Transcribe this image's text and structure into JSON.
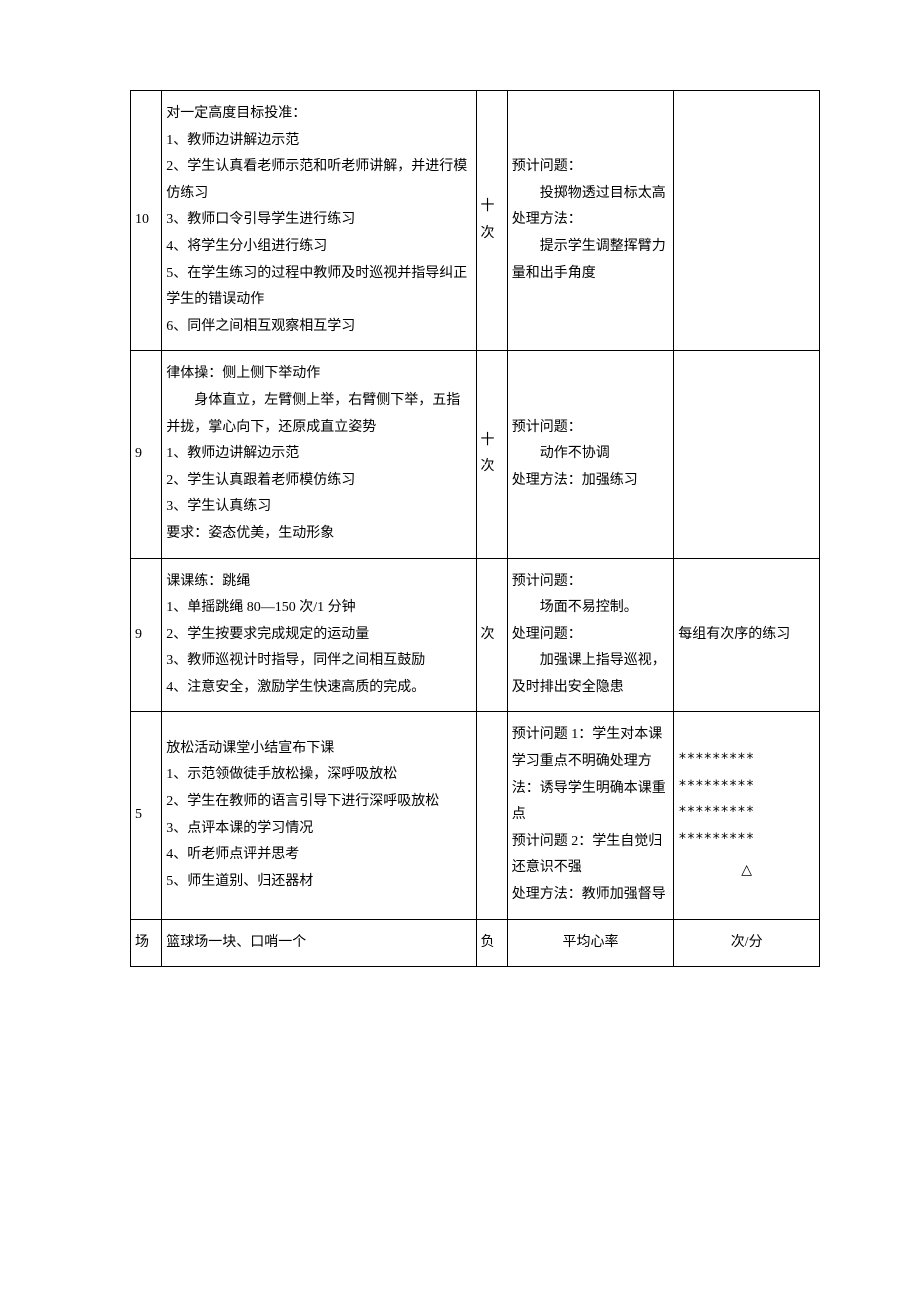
{
  "rows": [
    {
      "time": "10",
      "content": [
        "对一定高度目标投准：",
        "1、教师边讲解边示范",
        "2、学生认真看老师示范和听老师讲解，并进行模仿练习",
        "3、教师口令引导学生进行练习",
        "4、将学生分小组进行练习",
        "5、在学生练习的过程中教师及时巡视并指导纠正学生的错误动作",
        "6、同伴之间相互观察相互学习"
      ],
      "count": "十次",
      "issues": [
        "预计问题：",
        "　　投掷物透过目标太高",
        "处理方法：",
        "　　提示学生调整挥臂力量和出手角度"
      ],
      "notes": []
    },
    {
      "time": "9",
      "content": [
        "律体操：侧上侧下举动作",
        "　　身体直立，左臂侧上举，右臂侧下举，五指并拢，掌心向下，还原成直立姿势",
        "1、教师边讲解边示范",
        "2、学生认真跟着老师模仿练习",
        "3、学生认真练习",
        "要求：姿态优美，生动形象"
      ],
      "count": "十次",
      "issues": [
        "预计问题：",
        "　　动作不协调",
        "处理方法：加强练习"
      ],
      "notes": []
    },
    {
      "time": "9",
      "content": [
        "课课练：跳绳",
        "1、单摇跳绳 80—150 次/1 分钟",
        "2、学生按要求完成规定的运动量",
        "3、教师巡视计时指导，同伴之间相互鼓励",
        "4、注意安全，激励学生快速高质的完成。"
      ],
      "count": "次",
      "issues": [
        "预计问题：",
        "　　场面不易控制。",
        "处理问题：",
        "　　加强课上指导巡视，及时排出安全隐患"
      ],
      "notes": [
        "每组有次序的练习"
      ]
    },
    {
      "time": "5",
      "content": [
        "放松活动课堂小结宣布下课",
        "1、示范领做徒手放松操，深呼吸放松",
        "2、学生在教师的语言引导下进行深呼吸放松",
        "3、点评本课的学习情况",
        "4、听老师点评并思考",
        "5、师生道别、归还器材"
      ],
      "count": "",
      "issues": [
        "预计问题 1：学生对本课学习重点不明确处理方法：诱导学生明确本课重点",
        "预计问题 2：学生自觉归还意识不强",
        "处理方法：教师加强督导"
      ],
      "notes": [
        "*********",
        "*********",
        "*********",
        "*********",
        "△"
      ],
      "notes_special": true
    }
  ],
  "footer": {
    "col1": "场",
    "col2": "篮球场一块、口哨一个",
    "col3": "负",
    "col4": "平均心率",
    "col5": "次/分"
  }
}
